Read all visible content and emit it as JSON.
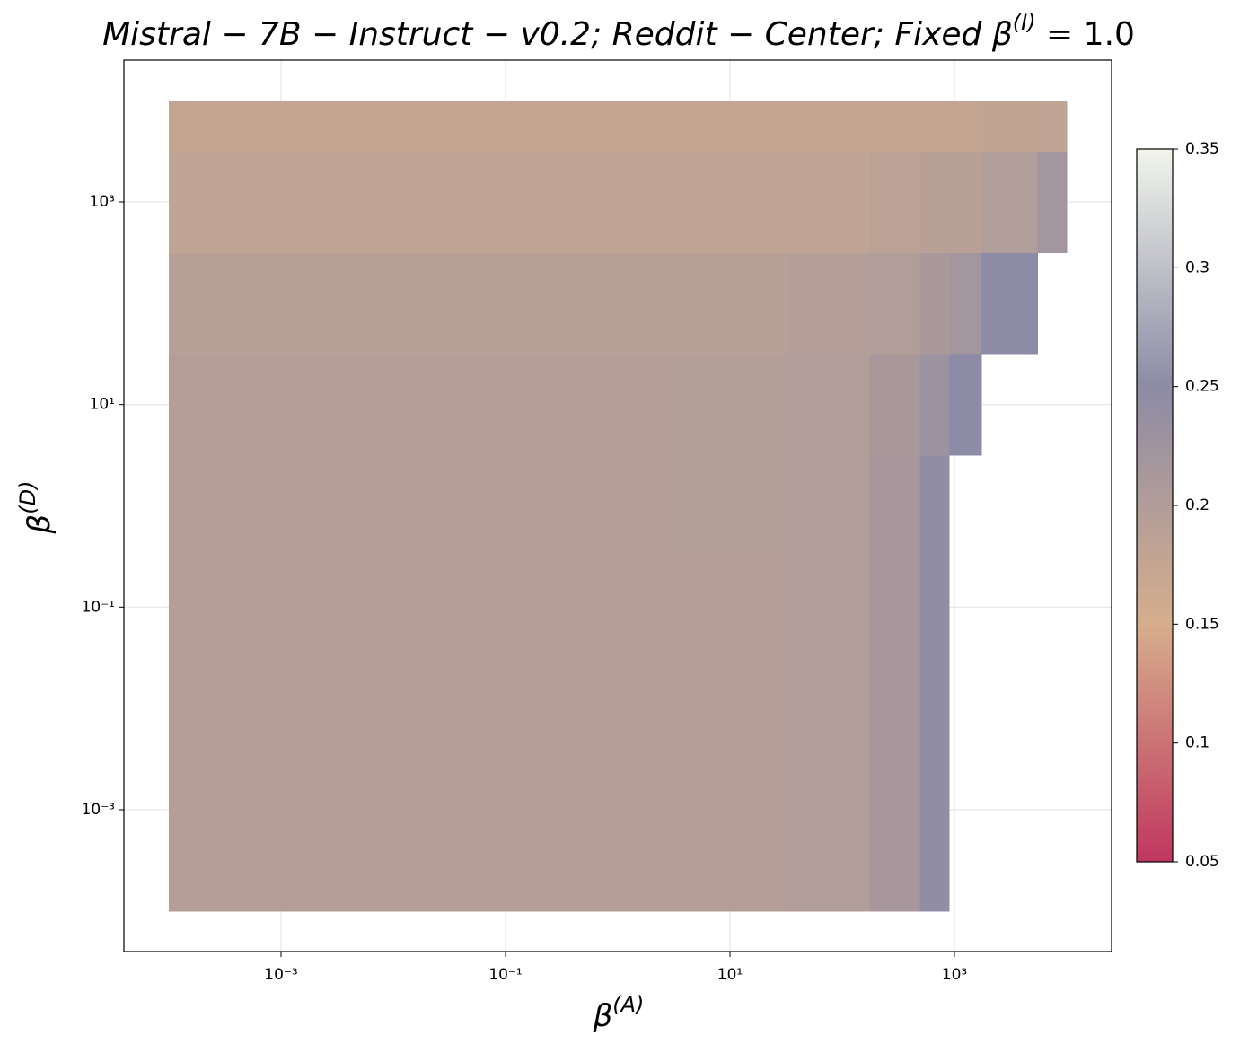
{
  "chart_data": {
    "type": "heatmap",
    "title": {
      "text": "Mistral − 7B − Instruct − v0.2;  Reddit − Center;  Fixed β",
      "sup": "(I)",
      "tail": " = 1.0"
    },
    "x_label": {
      "text": "β",
      "sup": "(A)"
    },
    "y_label": {
      "text": "β",
      "sup": "(D)"
    },
    "xscale": "log",
    "yscale": "log",
    "grid": true,
    "x": [
      0.0001,
      0.001,
      0.01,
      0.1,
      1,
      10,
      100,
      300,
      800,
      1000,
      3000,
      10000
    ],
    "y": [
      0.0001,
      0.001,
      0.01,
      0.1,
      1,
      10,
      100,
      1000,
      10000
    ],
    "z": [
      [
        0.195,
        0.195,
        0.195,
        0.195,
        0.195,
        0.195,
        0.2,
        0.215,
        0.245,
        null,
        null,
        null
      ],
      [
        0.195,
        0.195,
        0.195,
        0.195,
        0.195,
        0.195,
        0.2,
        0.215,
        0.245,
        null,
        null,
        null
      ],
      [
        0.195,
        0.195,
        0.195,
        0.195,
        0.195,
        0.195,
        0.2,
        0.215,
        0.245,
        null,
        null,
        null
      ],
      [
        0.195,
        0.195,
        0.195,
        0.195,
        0.195,
        0.195,
        0.2,
        0.215,
        0.245,
        null,
        null,
        null
      ],
      [
        0.195,
        0.195,
        0.195,
        0.195,
        0.195,
        0.196,
        0.2,
        0.215,
        0.245,
        null,
        null,
        null
      ],
      [
        0.195,
        0.195,
        0.195,
        0.195,
        0.195,
        0.196,
        0.2,
        0.21,
        0.23,
        0.25,
        null,
        null
      ],
      [
        0.19,
        0.19,
        0.19,
        0.19,
        0.19,
        0.19,
        0.195,
        0.2,
        0.21,
        0.22,
        0.25,
        null
      ],
      [
        0.18,
        0.18,
        0.18,
        0.18,
        0.18,
        0.18,
        0.18,
        0.185,
        0.19,
        0.19,
        0.2,
        0.22
      ],
      [
        0.175,
        0.175,
        0.175,
        0.175,
        0.175,
        0.175,
        0.175,
        0.175,
        0.175,
        0.175,
        0.178,
        0.18
      ]
    ],
    "xlim": [
      3.98e-05,
      25119
    ],
    "ylim": [
      3.98e-05,
      25119
    ],
    "xticks": [
      {
        "value": 0.001,
        "label": "10⁻³"
      },
      {
        "value": 0.1,
        "label": "10⁻¹"
      },
      {
        "value": 10,
        "label": "10¹"
      },
      {
        "value": 1000,
        "label": "10³"
      }
    ],
    "yticks": [
      {
        "value": 0.001,
        "label": "10⁻³"
      },
      {
        "value": 0.1,
        "label": "10⁻¹"
      },
      {
        "value": 10,
        "label": "10¹"
      },
      {
        "value": 1000,
        "label": "10³"
      }
    ],
    "colormap": [
      "#c0375f",
      "#d6ae8c",
      "#8d8ba5",
      "#f2f5ec"
    ],
    "clim": [
      0.05,
      0.35
    ],
    "cticks": [
      0.05,
      0.1,
      0.15,
      0.2,
      0.25,
      0.3,
      0.35
    ]
  }
}
